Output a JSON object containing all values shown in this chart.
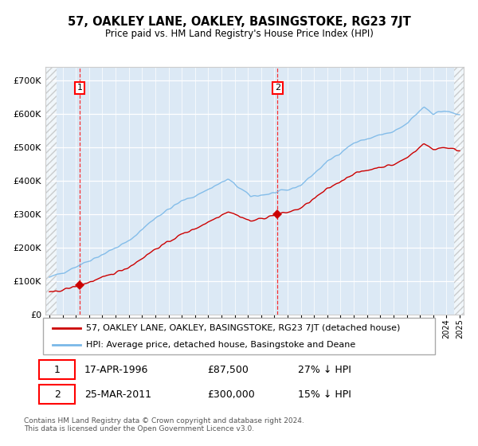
{
  "title": "57, OAKLEY LANE, OAKLEY, BASINGSTOKE, RG23 7JT",
  "subtitle": "Price paid vs. HM Land Registry's House Price Index (HPI)",
  "background_color": "#dce9f5",
  "y_ticks": [
    0,
    100000,
    200000,
    300000,
    400000,
    500000,
    600000,
    700000
  ],
  "y_tick_labels": [
    "£0",
    "£100K",
    "£200K",
    "£300K",
    "£400K",
    "£500K",
    "£600K",
    "£700K"
  ],
  "ylim": [
    0,
    740000
  ],
  "x_start_year": 1994,
  "x_end_year": 2025,
  "hpi_color": "#7ab8e8",
  "price_color": "#cc0000",
  "sale1_year": 1996.3,
  "sale1_price": 87500,
  "sale2_year": 2011.23,
  "sale2_price": 300000,
  "legend_label1": "57, OAKLEY LANE, OAKLEY, BASINGSTOKE, RG23 7JT (detached house)",
  "legend_label2": "HPI: Average price, detached house, Basingstoke and Deane",
  "annotation1_date": "17-APR-1996",
  "annotation1_price": "£87,500",
  "annotation1_hpi": "27% ↓ HPI",
  "annotation2_date": "25-MAR-2011",
  "annotation2_price": "£300,000",
  "annotation2_hpi": "15% ↓ HPI",
  "footer": "Contains HM Land Registry data © Crown copyright and database right 2024.\nThis data is licensed under the Open Government Licence v3.0."
}
